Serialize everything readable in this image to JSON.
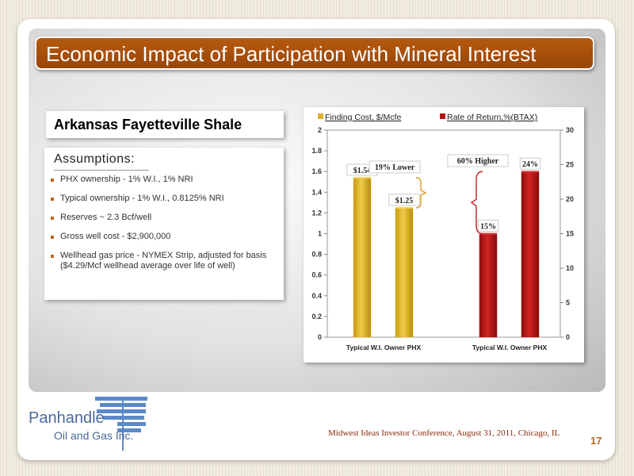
{
  "slide": {
    "title": "Economic Impact of Participation with Mineral Interest",
    "subtitle": "Arkansas Fayetteville Shale",
    "footer": "Midwest Ideas Investor Conference, August 31, 2011, Chicago, IL",
    "page_number": "17"
  },
  "colors": {
    "title_bar": "#a84f0b",
    "finding_cost": "#e0b324",
    "rate_of_return": "#b01414",
    "footer_text": "#8a2a10"
  },
  "assumptions": {
    "heading": "Assumptions:",
    "items": [
      "PHX ownership - 1% W.I., 1% NRI",
      "Typical  ownership - 1% W.I., 0.8125% NRI",
      "Reserves ~ 2.3 Bcf/well",
      "Gross well cost - $2,900,000",
      "Wellhead gas price - NYMEX Strip, adjusted for basis ($4.29/Mcf wellhead average over life of well)"
    ]
  },
  "logo": {
    "name": "Panhandle",
    "sub": "Oil and Gas Inc."
  },
  "chart_data": {
    "type": "bar",
    "legend": [
      "Finding  Cost, $/Mcfe",
      "Rate  of Return,%(BTAX)"
    ],
    "legend_position": "top",
    "groups": [
      {
        "series": "Finding  Cost, $/Mcfe",
        "axis": "left",
        "categories": [
          "Typical W.I. Owner",
          "PHX"
        ],
        "values": [
          1.54,
          1.25
        ],
        "labels": [
          "$1.54",
          "$1.25"
        ]
      },
      {
        "series": "Rate  of Return,%(BTAX)",
        "axis": "right",
        "categories": [
          "Typical W.I. Owner",
          "PHX"
        ],
        "values": [
          15,
          24
        ],
        "labels": [
          "15%",
          "24%"
        ]
      }
    ],
    "x_group_labels": [
      "Typical W.I. Owner PHX",
      "Typical W.I. Owner PHX"
    ],
    "y_left": {
      "min": 0,
      "max": 2,
      "ticks": [
        "0",
        "0.2",
        "0.4",
        "0.6",
        "0.8",
        "1",
        "1.2",
        "1.4",
        "1.6",
        "1.8",
        "2"
      ]
    },
    "y_right": {
      "min": 0,
      "max": 30,
      "ticks": [
        "0",
        "5",
        "10",
        "15",
        "20",
        "25",
        "30"
      ]
    },
    "annotations": [
      "19% Lower",
      "60%  Higher"
    ],
    "grid": false
  }
}
